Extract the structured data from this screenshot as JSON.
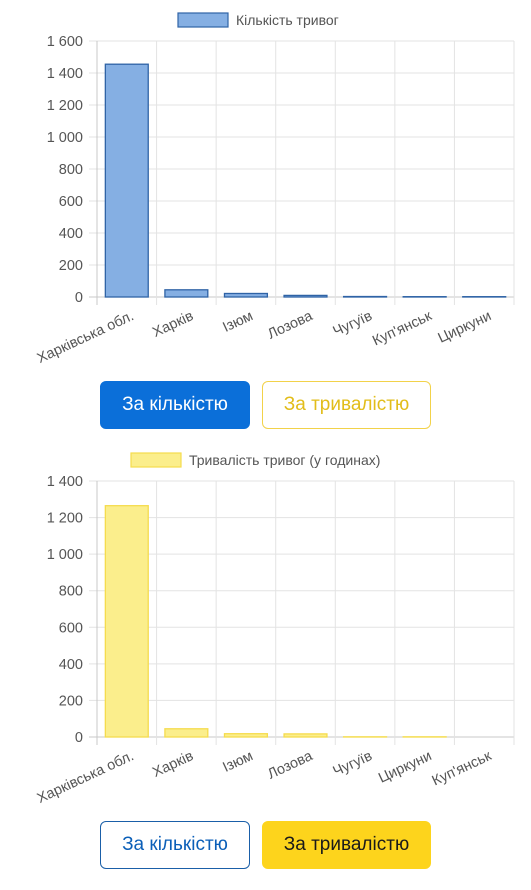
{
  "chart_data": [
    {
      "type": "bar",
      "series": [
        {
          "name": "Кількість тривог",
          "values": [
            1455,
            45,
            22,
            10,
            3,
            2,
            2
          ]
        }
      ],
      "categories": [
        "Харківська обл.",
        "Харків",
        "Ізюм",
        "Лозова",
        "Чугуїв",
        "Куп'янськ",
        "Циркуни"
      ],
      "ylim": [
        0,
        1600
      ],
      "yticks": [
        "0",
        "200",
        "400",
        "600",
        "800",
        "1 000",
        "1 200",
        "1 400",
        "1 600"
      ],
      "grid": true,
      "legend": "top",
      "colors": {
        "fill": "#85afe3",
        "stroke": "#2f63a6"
      }
    },
    {
      "type": "bar",
      "series": [
        {
          "name": "Тривалість тривог (у годинах)",
          "values": [
            1265,
            45,
            18,
            17,
            1,
            1,
            0
          ]
        }
      ],
      "categories": [
        "Харківська обл.",
        "Харків",
        "Ізюм",
        "Лозова",
        "Чугуїв",
        "Циркуни",
        "Куп'янськ"
      ],
      "ylim": [
        0,
        1400
      ],
      "yticks": [
        "0",
        "200",
        "400",
        "600",
        "800",
        "1 000",
        "1 200",
        "1 400"
      ],
      "grid": true,
      "legend": "top",
      "colors": {
        "fill": "#fbee8c",
        "stroke": "#f5dc4e"
      }
    }
  ],
  "buttons": [
    {
      "count_label": "За кількістю",
      "duration_label": "За тривалістю",
      "active": "count"
    },
    {
      "count_label": "За кількістю",
      "duration_label": "За тривалістю",
      "active": "duration"
    }
  ]
}
